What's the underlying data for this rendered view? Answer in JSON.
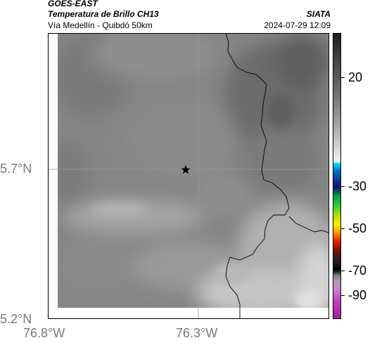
{
  "header": {
    "satellite": "GOES-EAST",
    "product": "Temperatura de Brillo CH13",
    "route": "Vía Medellín - Quibdó 50km",
    "agency": "SIATA",
    "datetime": "2024-07-29 12:09"
  },
  "map": {
    "lat_labels": [
      "5.7°N",
      "5.2°N"
    ],
    "lon_labels": [
      "76.8°W",
      "76.3°W"
    ],
    "marker_icon": "star-icon",
    "background_colors": [
      "#8a8a8a",
      "#6e6e6e",
      "#a8a8a8",
      "#c8c8c8"
    ]
  },
  "colorbar": {
    "labels": [
      "20",
      "-30",
      "-50",
      "-70",
      "-90"
    ],
    "unit": ""
  }
}
